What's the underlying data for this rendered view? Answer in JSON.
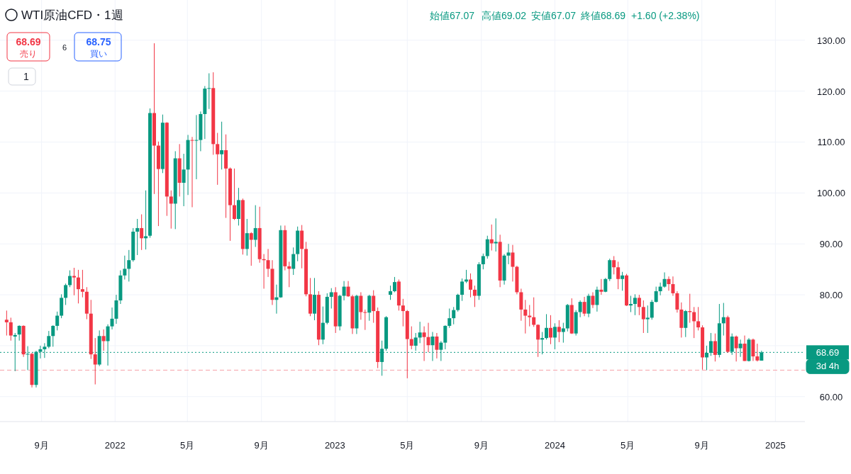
{
  "chart_data": {
    "type": "candlestick",
    "title": "WTI原油CFD・1週",
    "annotations": [
      "始値67.07",
      "高値69.02",
      "安値67.07",
      "終値68.69",
      "+1.60 (+2.38%)",
      "68.69",
      "売り",
      "6",
      "68.75",
      "買い",
      "1",
      "3d 4h"
    ],
    "x": [
      "2021-07-05",
      "2021-07-12",
      "2021-07-19",
      "2021-07-26",
      "2021-08-02",
      "2021-08-09",
      "2021-08-16",
      "2021-08-23",
      "2021-08-30",
      "2021-09-06",
      "2021-09-13",
      "2021-09-20",
      "2021-09-27",
      "2021-10-04",
      "2021-10-11",
      "2021-10-18",
      "2021-10-25",
      "2021-11-01",
      "2021-11-08",
      "2021-11-15",
      "2021-11-22",
      "2021-11-29",
      "2021-12-06",
      "2021-12-13",
      "2021-12-20",
      "2021-12-27",
      "2022-01-03",
      "2022-01-10",
      "2022-01-17",
      "2022-01-24",
      "2022-01-31",
      "2022-02-07",
      "2022-02-14",
      "2022-02-21",
      "2022-02-28",
      "2022-03-07",
      "2022-03-14",
      "2022-03-21",
      "2022-03-28",
      "2022-04-04",
      "2022-04-11",
      "2022-04-18",
      "2022-04-25",
      "2022-05-02",
      "2022-05-09",
      "2022-05-16",
      "2022-05-23",
      "2022-05-30",
      "2022-06-06",
      "2022-06-13",
      "2022-06-20",
      "2022-06-27",
      "2022-07-04",
      "2022-07-11",
      "2022-07-18",
      "2022-07-25",
      "2022-08-01",
      "2022-08-08",
      "2022-08-15",
      "2022-08-22",
      "2022-08-29",
      "2022-09-05",
      "2022-09-12",
      "2022-09-19",
      "2022-09-26",
      "2022-10-03",
      "2022-10-10",
      "2022-10-17",
      "2022-10-24",
      "2022-10-31",
      "2022-11-07",
      "2022-11-14",
      "2022-11-21",
      "2022-11-28",
      "2022-12-05",
      "2022-12-12",
      "2022-12-19",
      "2022-12-26",
      "2023-01-02",
      "2023-01-09",
      "2023-01-16",
      "2023-01-23",
      "2023-01-30",
      "2023-02-06",
      "2023-02-13",
      "2023-02-20",
      "2023-02-27",
      "2023-03-06",
      "2023-03-13",
      "2023-03-20",
      "2023-03-27",
      "2023-04-03",
      "2023-04-10",
      "2023-04-17",
      "2023-04-24",
      "2023-05-01",
      "2023-05-08",
      "2023-05-15",
      "2023-05-22",
      "2023-05-29",
      "2023-06-05",
      "2023-06-12",
      "2023-06-19",
      "2023-06-26",
      "2023-07-03",
      "2023-07-10",
      "2023-07-17",
      "2023-07-24",
      "2023-07-31",
      "2023-08-07",
      "2023-08-14",
      "2023-08-21",
      "2023-08-28",
      "2023-09-04",
      "2023-09-11",
      "2023-09-18",
      "2023-09-25",
      "2023-10-02",
      "2023-10-09",
      "2023-10-16",
      "2023-10-23",
      "2023-10-30",
      "2023-11-06",
      "2023-11-13",
      "2023-11-20",
      "2023-11-27",
      "2023-12-04",
      "2023-12-11",
      "2023-12-18",
      "2023-12-25",
      "2024-01-01",
      "2024-01-08",
      "2024-01-15",
      "2024-01-22",
      "2024-01-29",
      "2024-02-05",
      "2024-02-12",
      "2024-02-19",
      "2024-02-26",
      "2024-03-04",
      "2024-03-11",
      "2024-03-18",
      "2024-03-25",
      "2024-04-01",
      "2024-04-08",
      "2024-04-15",
      "2024-04-22",
      "2024-04-29",
      "2024-05-06",
      "2024-05-13",
      "2024-05-20",
      "2024-05-27",
      "2024-06-03",
      "2024-06-10",
      "2024-06-17",
      "2024-06-24",
      "2024-07-01",
      "2024-07-08",
      "2024-07-15",
      "2024-07-22",
      "2024-07-29",
      "2024-08-05",
      "2024-08-12",
      "2024-08-19",
      "2024-08-26",
      "2024-09-02",
      "2024-09-09",
      "2024-09-16",
      "2024-09-23",
      "2024-09-30",
      "2024-10-07",
      "2024-10-14",
      "2024-10-21",
      "2024-10-28",
      "2024-11-04",
      "2024-11-11",
      "2024-11-18",
      "2024-11-25",
      "2024-12-02",
      "2024-12-09"
    ],
    "ohlc": [
      [
        75.1,
        76.9,
        72.0,
        74.6
      ],
      [
        74.6,
        75.5,
        71.0,
        72.0
      ],
      [
        71.8,
        72.5,
        65.0,
        72.1
      ],
      [
        72.2,
        74.0,
        71.0,
        73.9
      ],
      [
        73.9,
        74.0,
        67.8,
        68.3
      ],
      [
        68.3,
        69.9,
        65.2,
        68.4
      ],
      [
        68.4,
        68.6,
        61.8,
        62.3
      ],
      [
        62.3,
        69.0,
        61.8,
        68.8
      ],
      [
        68.8,
        70.0,
        67.5,
        69.3
      ],
      [
        69.3,
        70.5,
        67.6,
        69.8
      ],
      [
        69.8,
        72.9,
        69.5,
        71.9
      ],
      [
        71.9,
        74.0,
        69.8,
        73.9
      ],
      [
        73.9,
        76.7,
        73.0,
        75.9
      ],
      [
        75.9,
        80.1,
        75.4,
        79.4
      ],
      [
        79.4,
        82.2,
        78.0,
        81.9
      ],
      [
        81.9,
        84.8,
        81.5,
        83.7
      ],
      [
        83.7,
        85.3,
        79.9,
        83.4
      ],
      [
        83.4,
        84.9,
        78.3,
        81.1
      ],
      [
        81.1,
        84.9,
        79.5,
        80.6
      ],
      [
        80.6,
        81.5,
        75.2,
        76.3
      ],
      [
        76.3,
        79.0,
        67.4,
        68.3
      ],
      [
        68.3,
        71.5,
        62.4,
        66.3
      ],
      [
        66.3,
        73.0,
        66.0,
        71.9
      ],
      [
        71.9,
        73.2,
        69.0,
        70.9
      ],
      [
        70.9,
        74.2,
        66.1,
        73.8
      ],
      [
        73.8,
        77.5,
        73.2,
        75.3
      ],
      [
        75.3,
        80.0,
        74.3,
        78.9
      ],
      [
        78.9,
        84.8,
        78.2,
        83.8
      ],
      [
        83.8,
        87.7,
        83.0,
        85.1
      ],
      [
        85.1,
        88.8,
        82.6,
        86.8
      ],
      [
        86.8,
        93.1,
        86.5,
        92.4
      ],
      [
        92.4,
        94.9,
        87.8,
        93.1
      ],
      [
        93.1,
        95.8,
        88.8,
        91.1
      ],
      [
        91.1,
        100.5,
        88.9,
        91.5
      ],
      [
        91.6,
        116.6,
        91.2,
        115.7
      ],
      [
        115.7,
        129.4,
        99.8,
        109.3
      ],
      [
        109.3,
        110.1,
        93.5,
        104.7
      ],
      [
        104.7,
        115.4,
        103.9,
        113.8
      ],
      [
        113.8,
        113.9,
        95.5,
        99.3
      ],
      [
        99.3,
        100.5,
        93.0,
        97.9
      ],
      [
        97.9,
        108.2,
        92.9,
        106.8
      ],
      [
        106.8,
        109.6,
        99.3,
        102.0
      ],
      [
        102.0,
        107.7,
        97.4,
        104.6
      ],
      [
        104.6,
        111.4,
        99.6,
        110.4
      ],
      [
        110.4,
        111.0,
        97.2,
        110.3
      ],
      [
        110.3,
        115.3,
        102.7,
        110.4
      ],
      [
        110.4,
        116.0,
        108.2,
        115.5
      ],
      [
        115.5,
        121.0,
        110.6,
        120.5
      ],
      [
        120.5,
        123.5,
        116.5,
        120.6
      ],
      [
        120.6,
        123.7,
        107.5,
        109.6
      ],
      [
        109.6,
        111.8,
        101.6,
        107.6
      ],
      [
        107.6,
        114.0,
        104.6,
        108.4
      ],
      [
        108.4,
        111.5,
        95.1,
        104.8
      ],
      [
        104.8,
        105.0,
        90.6,
        97.6
      ],
      [
        97.6,
        104.8,
        94.7,
        94.9
      ],
      [
        94.9,
        101.0,
        93.6,
        98.6
      ],
      [
        98.6,
        98.9,
        87.9,
        89.0
      ],
      [
        89.0,
        94.9,
        87.7,
        92.1
      ],
      [
        92.1,
        92.3,
        85.7,
        90.8
      ],
      [
        90.8,
        97.6,
        89.4,
        93.1
      ],
      [
        93.1,
        97.3,
        86.3,
        87.0
      ],
      [
        87.0,
        88.0,
        81.2,
        86.8
      ],
      [
        86.8,
        89.0,
        83.5,
        85.1
      ],
      [
        85.1,
        86.8,
        78.0,
        79.0
      ],
      [
        79.0,
        82.0,
        76.3,
        79.5
      ],
      [
        79.5,
        93.6,
        79.4,
        92.7
      ],
      [
        92.7,
        93.6,
        84.8,
        85.6
      ],
      [
        85.6,
        86.5,
        81.5,
        85.1
      ],
      [
        85.1,
        89.3,
        83.9,
        88.0
      ],
      [
        88.0,
        93.4,
        86.6,
        92.6
      ],
      [
        92.6,
        93.7,
        85.2,
        89.0
      ],
      [
        89.0,
        90.4,
        79.7,
        80.1
      ],
      [
        80.1,
        83.3,
        75.8,
        76.3
      ],
      [
        76.3,
        83.3,
        75.0,
        80.0
      ],
      [
        80.0,
        80.7,
        70.1,
        71.2
      ],
      [
        71.2,
        77.7,
        70.3,
        74.5
      ],
      [
        74.5,
        80.3,
        74.2,
        79.6
      ],
      [
        79.6,
        81.3,
        77.3,
        80.5
      ],
      [
        80.5,
        81.5,
        72.5,
        73.8
      ],
      [
        73.8,
        80.0,
        73.0,
        79.8
      ],
      [
        79.8,
        82.7,
        78.9,
        81.6
      ],
      [
        81.6,
        82.7,
        79.6,
        79.7
      ],
      [
        79.7,
        80.0,
        72.3,
        73.4
      ],
      [
        73.4,
        80.0,
        72.3,
        79.8
      ],
      [
        79.8,
        80.5,
        75.1,
        76.6
      ],
      [
        76.6,
        77.1,
        73.1,
        76.5
      ],
      [
        76.5,
        80.0,
        74.9,
        79.8
      ],
      [
        79.8,
        80.9,
        74.5,
        76.8
      ],
      [
        76.8,
        77.5,
        65.6,
        66.8
      ],
      [
        66.8,
        71.0,
        64.1,
        69.4
      ],
      [
        69.4,
        75.8,
        69.0,
        75.6
      ],
      [
        80.0,
        81.8,
        79.0,
        80.7
      ],
      [
        80.7,
        83.5,
        80.5,
        82.5
      ],
      [
        82.6,
        83.0,
        76.9,
        77.9
      ],
      [
        77.9,
        79.2,
        73.8,
        76.8
      ],
      [
        76.8,
        77.0,
        63.6,
        71.3
      ],
      [
        71.3,
        73.8,
        69.3,
        70.0
      ],
      [
        70.0,
        72.5,
        69.0,
        71.6
      ],
      [
        71.6,
        74.7,
        70.5,
        72.6
      ],
      [
        72.6,
        73.8,
        67.0,
        71.7
      ],
      [
        71.7,
        74.5,
        68.7,
        70.1
      ],
      [
        70.1,
        72.7,
        67.0,
        71.8
      ],
      [
        71.8,
        72.5,
        67.5,
        69.2
      ],
      [
        69.2,
        70.9,
        67.0,
        70.6
      ],
      [
        70.6,
        74.0,
        69.3,
        73.9
      ],
      [
        73.9,
        77.3,
        73.5,
        75.4
      ],
      [
        75.4,
        77.6,
        74.2,
        77.0
      ],
      [
        77.0,
        80.2,
        76.7,
        80.0
      ],
      [
        80.0,
        83.2,
        78.8,
        82.6
      ],
      [
        82.6,
        84.9,
        82.3,
        83.0
      ],
      [
        83.0,
        84.2,
        79.5,
        81.0
      ],
      [
        81.0,
        81.8,
        77.6,
        79.8
      ],
      [
        79.8,
        86.4,
        79.0,
        86.0
      ],
      [
        86.0,
        88.1,
        85.0,
        87.6
      ],
      [
        87.6,
        91.6,
        87.1,
        90.9
      ],
      [
        90.9,
        93.8,
        88.7,
        90.1
      ],
      [
        90.1,
        95.0,
        88.5,
        90.4
      ],
      [
        90.4,
        91.8,
        81.5,
        82.8
      ],
      [
        82.8,
        88.0,
        82.0,
        87.7
      ],
      [
        87.7,
        90.0,
        86.0,
        88.3
      ],
      [
        88.3,
        89.8,
        82.6,
        85.5
      ],
      [
        85.5,
        85.7,
        80.1,
        80.5
      ],
      [
        80.5,
        81.2,
        74.9,
        77.1
      ],
      [
        77.1,
        79.0,
        72.4,
        75.9
      ],
      [
        75.9,
        78.0,
        73.8,
        75.6
      ],
      [
        75.6,
        79.5,
        73.7,
        74.1
      ],
      [
        74.1,
        74.2,
        67.8,
        71.2
      ],
      [
        71.2,
        72.7,
        68.3,
        71.5
      ],
      [
        71.5,
        76.2,
        71.2,
        73.5
      ],
      [
        73.5,
        76.0,
        70.3,
        71.6
      ],
      [
        71.6,
        74.4,
        69.3,
        73.7
      ],
      [
        73.7,
        75.0,
        70.7,
        72.7
      ],
      [
        72.7,
        74.5,
        70.6,
        73.4
      ],
      [
        73.4,
        78.2,
        72.8,
        78.0
      ],
      [
        78.0,
        79.3,
        72.3,
        72.4
      ],
      [
        72.4,
        77.0,
        72.0,
        76.6
      ],
      [
        76.6,
        78.9,
        75.6,
        78.6
      ],
      [
        78.6,
        79.6,
        75.8,
        76.3
      ],
      [
        76.3,
        80.2,
        75.6,
        79.8
      ],
      [
        79.8,
        80.5,
        77.4,
        78.0
      ],
      [
        78.0,
        81.6,
        76.7,
        81.0
      ],
      [
        81.0,
        83.1,
        80.0,
        80.6
      ],
      [
        80.6,
        83.3,
        80.5,
        83.1
      ],
      [
        83.1,
        87.1,
        82.7,
        86.8
      ],
      [
        86.8,
        87.6,
        84.0,
        85.4
      ],
      [
        85.4,
        86.5,
        81.1,
        83.1
      ],
      [
        83.1,
        84.5,
        80.8,
        83.8
      ],
      [
        83.8,
        84.1,
        77.8,
        77.9
      ],
      [
        77.9,
        79.8,
        76.6,
        78.2
      ],
      [
        78.2,
        80.1,
        76.0,
        79.4
      ],
      [
        79.4,
        80.0,
        76.0,
        77.6
      ],
      [
        77.6,
        78.9,
        72.5,
        75.2
      ],
      [
        75.2,
        77.9,
        72.5,
        75.5
      ],
      [
        75.5,
        79.0,
        75.1,
        78.6
      ],
      [
        78.6,
        81.6,
        78.5,
        80.7
      ],
      [
        80.7,
        82.4,
        79.9,
        81.6
      ],
      [
        81.6,
        84.4,
        81.4,
        83.1
      ],
      [
        83.1,
        83.6,
        80.8,
        82.1
      ],
      [
        82.1,
        83.6,
        79.8,
        80.3
      ],
      [
        80.3,
        80.7,
        76.5,
        77.1
      ],
      [
        77.1,
        78.5,
        71.6,
        73.5
      ],
      [
        73.5,
        77.0,
        71.7,
        76.8
      ],
      [
        76.8,
        80.2,
        74.5,
        76.6
      ],
      [
        76.6,
        77.6,
        71.5,
        74.8
      ],
      [
        74.8,
        77.6,
        73.0,
        73.6
      ],
      [
        73.6,
        74.0,
        65.3,
        67.7
      ],
      [
        67.7,
        70.0,
        65.2,
        68.6
      ],
      [
        68.6,
        72.5,
        68.0,
        70.9
      ],
      [
        70.9,
        72.4,
        66.9,
        68.2
      ],
      [
        68.2,
        78.2,
        67.7,
        74.4
      ],
      [
        74.4,
        78.4,
        72.0,
        75.6
      ],
      [
        75.6,
        75.9,
        68.6,
        68.8
      ],
      [
        68.8,
        72.4,
        68.2,
        71.8
      ],
      [
        71.8,
        72.0,
        66.9,
        69.5
      ],
      [
        69.5,
        71.2,
        67.8,
        70.4
      ],
      [
        70.4,
        72.0,
        67.0,
        67.0
      ],
      [
        67.0,
        71.5,
        66.9,
        71.2
      ],
      [
        71.2,
        71.4,
        67.0,
        67.9
      ],
      [
        67.9,
        70.4,
        66.9,
        67.1
      ],
      [
        67.07,
        69.02,
        67.07,
        68.69
      ]
    ],
    "colors": [
      "#f23645",
      "#f23645",
      "#089981",
      "#089981",
      "#f23645",
      "#089981",
      "#f23645",
      "#089981",
      "#089981",
      "#089981",
      "#089981",
      "#089981",
      "#089981",
      "#089981",
      "#089981",
      "#089981",
      "#f23645",
      "#f23645",
      "#f23645",
      "#f23645",
      "#f23645",
      "#f23645",
      "#089981",
      "#f23645",
      "#089981",
      "#089981",
      "#089981",
      "#089981",
      "#089981",
      "#089981",
      "#089981",
      "#089981",
      "#f23645",
      "#089981",
      "#089981",
      "#f23645",
      "#f23645",
      "#089981",
      "#f23645",
      "#f23645",
      "#089981",
      "#f23645",
      "#089981",
      "#089981",
      "#f23645",
      "#089981",
      "#089981",
      "#089981",
      "#089981",
      "#f23645",
      "#f23645",
      "#089981",
      "#f23645",
      "#f23645",
      "#f23645",
      "#089981",
      "#f23645",
      "#089981",
      "#f23645",
      "#089981",
      "#f23645",
      "#f23645",
      "#f23645",
      "#f23645",
      "#089981",
      "#089981",
      "#f23645",
      "#f23645",
      "#089981",
      "#089981",
      "#f23645",
      "#f23645",
      "#f23645",
      "#089981",
      "#f23645",
      "#089981",
      "#089981",
      "#089981",
      "#f23645",
      "#089981",
      "#089981",
      "#f23645",
      "#f23645",
      "#089981",
      "#f23645",
      "#f23645",
      "#089981",
      "#f23645",
      "#f23645",
      "#089981",
      "#089981",
      "#089981",
      "#089981",
      "#f23645",
      "#f23645",
      "#f23645",
      "#f23645",
      "#089981",
      "#089981",
      "#f23645",
      "#f23645",
      "#089981",
      "#f23645",
      "#089981",
      "#089981",
      "#089981",
      "#089981",
      "#089981",
      "#089981",
      "#089981",
      "#f23645",
      "#f23645",
      "#089981",
      "#089981",
      "#089981",
      "#f23645",
      "#089981",
      "#f23645",
      "#089981",
      "#089981",
      "#f23645",
      "#f23645",
      "#f23645",
      "#f23645",
      "#f23645",
      "#f23645",
      "#f23645",
      "#089981",
      "#089981",
      "#f23645",
      "#089981",
      "#f23645",
      "#089981",
      "#089981",
      "#f23645",
      "#089981",
      "#089981",
      "#f23645",
      "#089981",
      "#f23645",
      "#089981",
      "#f23645",
      "#089981",
      "#089981",
      "#f23645",
      "#f23645",
      "#089981",
      "#f23645",
      "#089981",
      "#089981",
      "#f23645",
      "#f23645",
      "#089981",
      "#089981",
      "#089981",
      "#089981",
      "#089981",
      "#f23645",
      "#f23645",
      "#f23645",
      "#f23645",
      "#089981",
      "#f23645",
      "#f23645",
      "#f23645",
      "#f23645",
      "#089981",
      "#089981",
      "#f23645",
      "#089981",
      "#089981",
      "#f23645",
      "#089981",
      "#f23645",
      "#089981",
      "#f23645",
      "#089981",
      "#f23645",
      "#f23645",
      "#089981"
    ],
    "xlim": [
      "2021-06-24",
      "2025-02-19"
    ],
    "xticks": [
      {
        "value": "2021-09-01",
        "label": "9月"
      },
      {
        "value": "2022-01-01",
        "label": "2022"
      },
      {
        "value": "2022-05-01",
        "label": "5月"
      },
      {
        "value": "2022-09-01",
        "label": "9月"
      },
      {
        "value": "2023-01-01",
        "label": "2023"
      },
      {
        "value": "2023-05-01",
        "label": "5月"
      },
      {
        "value": "2023-09-01",
        "label": "9月"
      },
      {
        "value": "2024-01-01",
        "label": "2024"
      },
      {
        "value": "2024-05-01",
        "label": "5月"
      },
      {
        "value": "2024-09-01",
        "label": "9月"
      },
      {
        "value": "2025-01-01",
        "label": "2025"
      }
    ],
    "ylim": [
      55.1,
      137.9
    ],
    "yticks": [
      {
        "value": 60,
        "label": "60.00"
      },
      {
        "value": 70,
        "label": null
      },
      {
        "value": 80,
        "label": "80.00"
      },
      {
        "value": 90,
        "label": "90.00"
      },
      {
        "value": 100,
        "label": "100.00"
      },
      {
        "value": 110,
        "label": "110.00"
      },
      {
        "value": 120,
        "label": "120.00"
      },
      {
        "value": 130,
        "label": "130.00"
      }
    ],
    "ref_lines": [
      {
        "axis": "y",
        "value": 68.69,
        "label": "68.69",
        "color": "#089981",
        "line_style": "dotted"
      },
      {
        "axis": "y",
        "value": 65.2,
        "color": "#f7a1a8",
        "line_style": "dashed"
      }
    ],
    "grid": true
  }
}
